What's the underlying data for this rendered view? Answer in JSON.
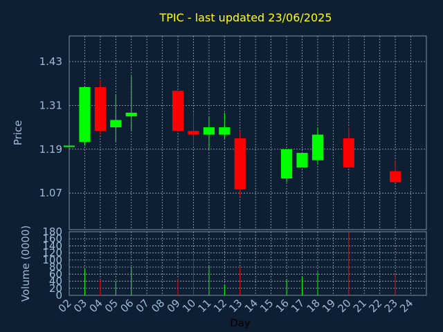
{
  "chart_data": {
    "type": "candlestick",
    "title": "TPIC - last updated 23/06/2025",
    "xlabel": "Day",
    "colors": {
      "background": "#0f1f33",
      "axes_text": "#9fbbd6",
      "title": "#ffff00",
      "up": "#00ff00",
      "down": "#ff0000",
      "grid": "#9fb0c0"
    },
    "price_panel": {
      "ylabel": "Price",
      "ylim": [
        0.97,
        1.5
      ],
      "yticks": [
        1.07,
        1.19,
        1.31,
        1.43
      ],
      "ytick_labels": [
        "1.07",
        "1.19",
        "1.31",
        "1.43"
      ]
    },
    "volume_panel": {
      "ylabel": "Volume (0000)",
      "ylim": [
        0,
        180
      ],
      "yticks": [
        0,
        20,
        40,
        60,
        80,
        100,
        120,
        140,
        160,
        180
      ],
      "ytick_labels": [
        "0",
        "20",
        "40",
        "60",
        "80",
        "100",
        "120",
        "140",
        "160",
        "180"
      ]
    },
    "x_labels": [
      "02",
      "03",
      "04",
      "05",
      "06",
      "07",
      "08",
      "09",
      "10",
      "11",
      "12",
      "13",
      "14",
      "15",
      "16",
      "17",
      "18",
      "19",
      "20",
      "21",
      "22",
      "23",
      "24"
    ],
    "candles": [
      {
        "day": "02",
        "open": 1.2,
        "close": 1.2,
        "high": 1.2,
        "low": 1.2,
        "volume": 0
      },
      {
        "day": "03",
        "open": 1.21,
        "close": 1.36,
        "high": 1.36,
        "low": 1.2,
        "volume": 75
      },
      {
        "day": "04",
        "open": 1.36,
        "close": 1.24,
        "high": 1.38,
        "low": 1.23,
        "volume": 45
      },
      {
        "day": "05",
        "open": 1.25,
        "close": 1.27,
        "high": 1.34,
        "low": 1.21,
        "volume": 40
      },
      {
        "day": "06",
        "open": 1.28,
        "close": 1.29,
        "high": 1.39,
        "low": 1.24,
        "volume": 80
      },
      {
        "day": "09",
        "open": 1.35,
        "close": 1.24,
        "high": 1.35,
        "low": 1.24,
        "volume": 47
      },
      {
        "day": "10",
        "open": 1.24,
        "close": 1.23,
        "high": 1.29,
        "low": 1.2,
        "volume": 115
      },
      {
        "day": "11",
        "open": 1.23,
        "close": 1.25,
        "high": 1.28,
        "low": 1.19,
        "volume": 83
      },
      {
        "day": "12",
        "open": 1.23,
        "close": 1.25,
        "high": 1.29,
        "low": 1.22,
        "volume": 30
      },
      {
        "day": "13",
        "open": 1.22,
        "close": 1.08,
        "high": 1.24,
        "low": 1.06,
        "volume": 80
      },
      {
        "day": "16",
        "open": 1.11,
        "close": 1.19,
        "high": 1.19,
        "low": 1.1,
        "volume": 45
      },
      {
        "day": "17",
        "open": 1.14,
        "close": 1.18,
        "high": 1.18,
        "low": 1.14,
        "volume": 52
      },
      {
        "day": "18",
        "open": 1.16,
        "close": 1.23,
        "high": 1.25,
        "low": 1.15,
        "volume": 65
      },
      {
        "day": "20",
        "open": 1.22,
        "close": 1.14,
        "high": 1.25,
        "low": 1.14,
        "volume": 180
      },
      {
        "day": "23",
        "open": 1.13,
        "close": 1.1,
        "high": 1.16,
        "low": 1.1,
        "volume": 60
      }
    ]
  }
}
